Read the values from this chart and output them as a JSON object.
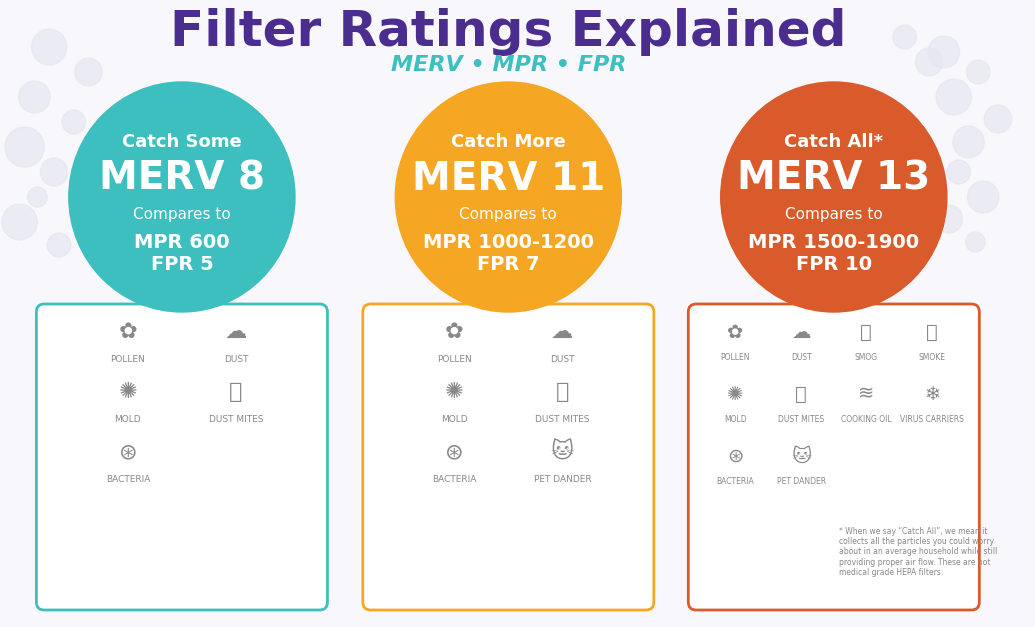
{
  "title": "Filter Ratings Explained",
  "subtitle": "MERV • MPR • FPR",
  "title_color": "#4a2d8f",
  "subtitle_color": "#3dbfbf",
  "bg_color": "#f8f8fc",
  "bg_dot_color": "#e0e0ee",
  "columns": [
    {
      "circle_color": "#3dbfbf",
      "border_color": "#3dbfbf",
      "catch_label": "Catch Some",
      "merv_label": "MERV 8",
      "compares_to": "Compares to",
      "mpr_label": "MPR 600",
      "fpr_label": "FPR 5",
      "items": [
        "POLLEN",
        "DUST",
        "MOLD",
        "DUST MITES",
        "BACTERIA"
      ]
    },
    {
      "circle_color": "#f5a623",
      "border_color": "#f5a623",
      "catch_label": "Catch More",
      "merv_label": "MERV 11",
      "compares_to": "Compares to",
      "mpr_label": "MPR 1000-1200",
      "fpr_label": "FPR 7",
      "items": [
        "POLLEN",
        "DUST",
        "MOLD",
        "DUST MITES",
        "BACTERIA",
        "PET DANDER"
      ]
    },
    {
      "circle_color": "#d95a2b",
      "border_color": "#d95a2b",
      "catch_label": "Catch All*",
      "merv_label": "MERV 13",
      "compares_to": "Compares to",
      "mpr_label": "MPR 1500-1900",
      "fpr_label": "FPR 10",
      "items": [
        "POLLEN",
        "DUST",
        "SMOG",
        "SMOKE",
        "MOLD",
        "DUST MITES",
        "COOKING OIL",
        "VIRUS CARRIERS",
        "BACTERIA",
        "PET DANDER"
      ],
      "footnote": "* When we say “Catch All”, we mean it\ncollects all the particles you could worry\nabout in an average household while still\nproviding proper air flow. These are not\nmedical grade HEPA filters."
    }
  ]
}
